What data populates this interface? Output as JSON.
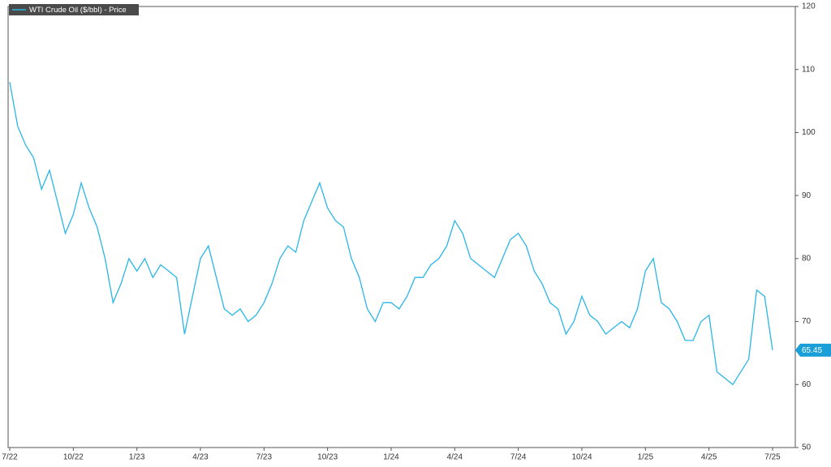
{
  "chart_data": {
    "type": "line",
    "categories": [
      "7/22",
      null,
      null,
      null,
      null,
      null,
      null,
      null,
      "10/22",
      null,
      null,
      null,
      null,
      null,
      null,
      null,
      "1/23",
      null,
      null,
      null,
      null,
      null,
      null,
      null,
      "4/23",
      null,
      null,
      null,
      null,
      null,
      null,
      null,
      "7/23",
      null,
      null,
      null,
      null,
      null,
      null,
      null,
      "10/23",
      null,
      null,
      null,
      null,
      null,
      null,
      null,
      "1/24",
      null,
      null,
      null,
      null,
      null,
      null,
      null,
      "4/24",
      null,
      null,
      null,
      null,
      null,
      null,
      null,
      "7/24",
      null,
      null,
      null,
      null,
      null,
      null,
      null,
      "10/24",
      null,
      null,
      null,
      null,
      null,
      null,
      null,
      "1/25",
      null,
      null,
      null,
      null,
      null,
      null,
      null,
      "4/25",
      null,
      null,
      null,
      null,
      null,
      null,
      null,
      "7/25"
    ],
    "series": [
      {
        "name": "WTI Crude Oil ($/bbl) - Price",
        "color": "#29b6e8",
        "values": [
          108,
          101,
          98,
          96,
          91,
          94,
          89,
          84,
          87,
          92,
          88,
          85,
          80,
          73,
          76,
          80,
          78,
          80,
          77,
          79,
          78,
          77,
          68,
          74,
          80,
          82,
          77,
          72,
          71,
          72,
          70,
          71,
          73,
          76,
          80,
          82,
          81,
          86,
          89,
          92,
          88,
          86,
          85,
          80,
          77,
          72,
          70,
          73,
          73,
          72,
          74,
          77,
          77,
          79,
          80,
          82,
          86,
          84,
          80,
          79,
          78,
          77,
          80,
          83,
          84,
          82,
          78,
          76,
          73,
          72,
          68,
          70,
          74,
          71,
          70,
          68,
          69,
          70,
          69,
          72,
          78,
          80,
          73,
          72,
          70,
          67,
          67,
          70,
          71,
          62,
          61,
          60,
          62,
          64,
          75,
          74,
          65.45
        ]
      }
    ],
    "ylim": [
      50,
      120
    ],
    "yticks": [
      50,
      60,
      70,
      80,
      90,
      100,
      110,
      120
    ]
  }
}
